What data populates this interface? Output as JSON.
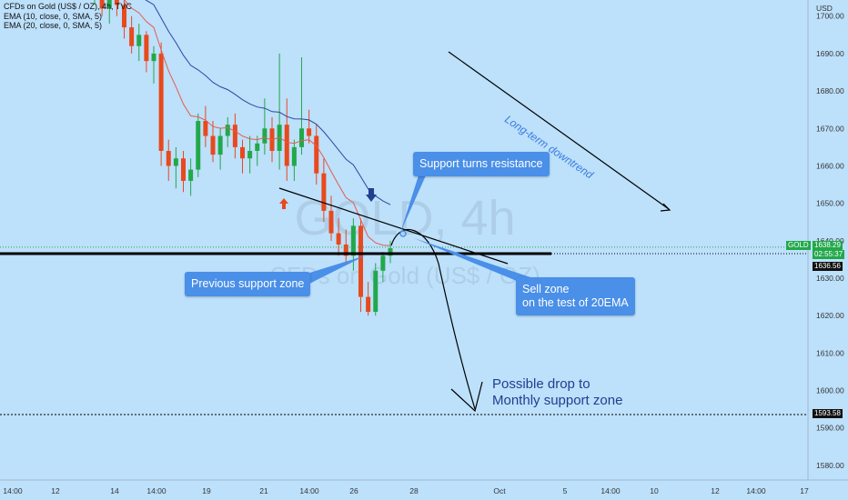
{
  "header": {
    "title": "CFDs on Gold (US$ / OZ), 4h, TVC",
    "ema10": "EMA (10, close, 0, SMA, 5)",
    "ema20": "EMA (20, close, 0, SMA, 5)"
  },
  "watermark": {
    "symbol": "GOLD, 4h",
    "name": "CFDs on Gold (US$ / OZ)"
  },
  "colors": {
    "background": "#bde0fb",
    "up": "#22a84a",
    "down": "#e8491d",
    "ema10": "#e85a4e",
    "ema20": "#2b47a0",
    "note": "#4a8fe8",
    "text_dark": "#1f3f8f"
  },
  "chart_data": {
    "type": "candlestick",
    "symbol": "GOLD",
    "timeframe": "4h",
    "y_axis": {
      "label": "USD",
      "ylim": [
        1573,
        1712
      ],
      "ticks": [
        1580,
        1590,
        1600,
        1610,
        1620,
        1630,
        1640,
        1650,
        1660,
        1670,
        1680,
        1690,
        1700
      ]
    },
    "x_axis": {
      "ticks": [
        "14:00",
        "12",
        "14",
        "14:00",
        "19",
        "14:00",
        "21",
        "14:00",
        "26",
        "14:00",
        "28",
        "Oct",
        "5",
        "14:00",
        "10",
        "12",
        "14:00",
        "17"
      ]
    },
    "ohlc": [
      [
        1707,
        1711,
        1703,
        1708
      ],
      [
        1708,
        1712,
        1700,
        1702
      ],
      [
        1702,
        1710,
        1698,
        1706
      ],
      [
        1706,
        1711,
        1700,
        1703
      ],
      [
        1703,
        1707,
        1694,
        1697
      ],
      [
        1697,
        1700,
        1690,
        1692
      ],
      [
        1692,
        1698,
        1688,
        1695
      ],
      [
        1695,
        1696,
        1685,
        1688
      ],
      [
        1688,
        1692,
        1682,
        1690
      ],
      [
        1690,
        1693,
        1660,
        1664
      ],
      [
        1664,
        1667,
        1656,
        1660
      ],
      [
        1660,
        1665,
        1654,
        1662
      ],
      [
        1662,
        1664,
        1653,
        1656
      ],
      [
        1656,
        1662,
        1652,
        1659
      ],
      [
        1659,
        1674,
        1657,
        1672
      ],
      [
        1672,
        1676,
        1665,
        1668
      ],
      [
        1668,
        1672,
        1661,
        1663
      ],
      [
        1663,
        1670,
        1659,
        1668
      ],
      [
        1668,
        1673,
        1665,
        1671
      ],
      [
        1671,
        1674,
        1662,
        1665
      ],
      [
        1665,
        1667,
        1658,
        1662
      ],
      [
        1662,
        1668,
        1658,
        1664
      ],
      [
        1664,
        1668,
        1660,
        1666
      ],
      [
        1666,
        1678,
        1663,
        1670
      ],
      [
        1670,
        1673,
        1661,
        1664
      ],
      [
        1664,
        1690,
        1659,
        1671
      ],
      [
        1671,
        1678,
        1656,
        1660
      ],
      [
        1660,
        1667,
        1656,
        1665
      ],
      [
        1665,
        1689,
        1663,
        1670
      ],
      [
        1670,
        1675,
        1666,
        1668
      ],
      [
        1668,
        1671,
        1655,
        1658
      ],
      [
        1658,
        1662,
        1645,
        1648
      ],
      [
        1648,
        1652,
        1640,
        1642
      ],
      [
        1642,
        1646,
        1636,
        1639
      ],
      [
        1639,
        1643,
        1634,
        1636
      ],
      [
        1636,
        1646,
        1632,
        1644
      ],
      [
        1644,
        1646,
        1621,
        1625
      ],
      [
        1625,
        1629,
        1620,
        1621
      ],
      [
        1621,
        1634,
        1620,
        1632
      ],
      [
        1632,
        1637,
        1629,
        1636
      ],
      [
        1636,
        1640,
        1634,
        1638
      ]
    ],
    "last_price": 1638.29,
    "countdown": "02:55:37",
    "marked_levels": [
      1636.56,
      1593.58
    ],
    "annotations": [
      "Support turns resistance",
      "Previous support zone",
      "Sell zone\non the test of 20EMA",
      "Possible drop to\nMonthly support zone",
      "Long-term downtrend"
    ]
  },
  "notes": {
    "support_resistance": "Support turns resistance",
    "previous_support": "Previous support zone",
    "sell_zone_1": "Sell zone",
    "sell_zone_2": "on the test of 20EMA",
    "drop_1": "Possible drop to",
    "drop_2": "Monthly support zone",
    "downtrend": "Long-term downtrend"
  },
  "price_tags": {
    "symbol": "GOLD",
    "last": "1638.29",
    "countdown": "02:55:37",
    "level_a": "1636.56",
    "level_b": "1593.58"
  }
}
